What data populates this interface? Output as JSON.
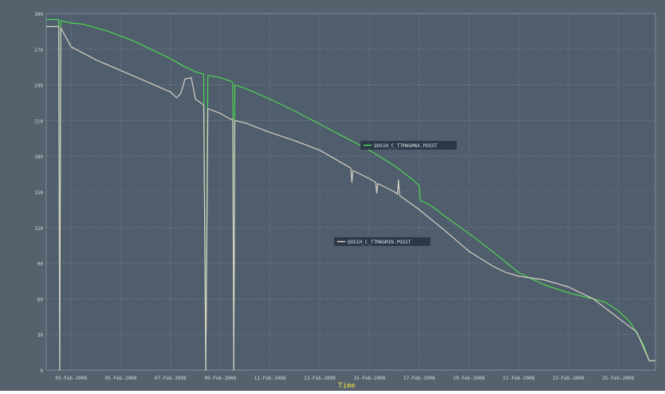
{
  "chart_data": {
    "type": "line",
    "xlabel": "Time",
    "ylabel": "",
    "ylim": [
      0,
      300
    ],
    "yticks": [
      0,
      30,
      60,
      90,
      120,
      150,
      180,
      210,
      240,
      270,
      300
    ],
    "xlim": [
      "2008-02-02T00:00",
      "2008-02-26T12:00"
    ],
    "xticks": [
      {
        "date": "2008-02-03",
        "label": "03-Feb-2008"
      },
      {
        "date": "2008-02-05",
        "label": "05-Feb-2008"
      },
      {
        "date": "2008-02-07",
        "label": "07-Feb-2008"
      },
      {
        "date": "2008-02-09",
        "label": "09-Feb-2008"
      },
      {
        "date": "2008-02-11",
        "label": "11-Feb-2008"
      },
      {
        "date": "2008-02-13",
        "label": "13-Feb-2008"
      },
      {
        "date": "2008-02-15",
        "label": "15-Feb-2008"
      },
      {
        "date": "2008-02-17",
        "label": "17-Feb-2008"
      },
      {
        "date": "2008-02-19",
        "label": "19-Feb-2008"
      },
      {
        "date": "2008-02-21",
        "label": "21-Feb-2008"
      },
      {
        "date": "2008-02-23",
        "label": "23-Feb-2008"
      },
      {
        "date": "2008-02-25",
        "label": "25-Feb-2008"
      }
    ],
    "grid": true,
    "colors": {
      "background": "#4f5d6d",
      "grid": "#7a8594",
      "tick_text": "#d4d8de",
      "xlabel": "#f0e040"
    },
    "series": [
      {
        "name": "QUS1H_C_TTMAGMAX.POSST",
        "color": "#4fd64f",
        "points": [
          [
            "2008-02-02T00:00",
            295
          ],
          [
            "2008-02-02T12:00",
            295
          ],
          [
            "2008-02-02T13:00",
            0
          ],
          [
            "2008-02-02T14:00",
            294
          ],
          [
            "2008-02-03T00:00",
            292
          ],
          [
            "2008-02-03T12:00",
            291
          ],
          [
            "2008-02-04T00:00",
            288
          ],
          [
            "2008-02-04T12:00",
            285
          ],
          [
            "2008-02-05T00:00",
            281
          ],
          [
            "2008-02-05T12:00",
            277
          ],
          [
            "2008-02-06T00:00",
            272
          ],
          [
            "2008-02-06T12:00",
            267
          ],
          [
            "2008-02-07T00:00",
            262
          ],
          [
            "2008-02-07T12:00",
            256
          ],
          [
            "2008-02-08T00:00",
            251
          ],
          [
            "2008-02-08T08:00",
            249
          ],
          [
            "2008-02-08T10:00",
            0
          ],
          [
            "2008-02-08T12:00",
            248
          ],
          [
            "2008-02-09T00:00",
            246
          ],
          [
            "2008-02-09T10:00",
            243
          ],
          [
            "2008-02-09T12:00",
            242
          ],
          [
            "2008-02-09T13:00",
            0
          ],
          [
            "2008-02-09T14:00",
            240
          ],
          [
            "2008-02-10T00:00",
            237
          ],
          [
            "2008-02-11T00:00",
            228
          ],
          [
            "2008-02-12T00:00",
            218
          ],
          [
            "2008-02-13T00:00",
            207
          ],
          [
            "2008-02-14T00:00",
            196
          ],
          [
            "2008-02-15T00:00",
            185
          ],
          [
            "2008-02-16T00:00",
            172
          ],
          [
            "2008-02-16T18:00",
            160
          ],
          [
            "2008-02-17T00:00",
            155
          ],
          [
            "2008-02-17T01:00",
            143
          ],
          [
            "2008-02-17T12:00",
            138
          ],
          [
            "2008-02-18T00:00",
            130
          ],
          [
            "2008-02-19T00:00",
            115
          ],
          [
            "2008-02-20T00:00",
            99
          ],
          [
            "2008-02-21T00:00",
            82
          ],
          [
            "2008-02-22T00:00",
            72
          ],
          [
            "2008-02-23T00:00",
            65
          ],
          [
            "2008-02-24T00:00",
            60
          ],
          [
            "2008-02-24T12:00",
            57
          ],
          [
            "2008-02-25T00:00",
            50
          ],
          [
            "2008-02-25T12:00",
            40
          ],
          [
            "2008-02-26T00:00",
            22
          ],
          [
            "2008-02-26T06:00",
            8
          ],
          [
            "2008-02-26T12:00",
            8
          ]
        ]
      },
      {
        "name": "QUS1H_C_TTMAGMIN.POSST",
        "color": "#d8d0c4",
        "points": [
          [
            "2008-02-02T00:00",
            289
          ],
          [
            "2008-02-02T12:00",
            289
          ],
          [
            "2008-02-02T13:00",
            0
          ],
          [
            "2008-02-02T14:00",
            288
          ],
          [
            "2008-02-03T00:00",
            272
          ],
          [
            "2008-02-04T00:00",
            261
          ],
          [
            "2008-02-05T00:00",
            252
          ],
          [
            "2008-02-06T00:00",
            243
          ],
          [
            "2008-02-07T00:00",
            234
          ],
          [
            "2008-02-07T06:00",
            229
          ],
          [
            "2008-02-07T10:00",
            233
          ],
          [
            "2008-02-07T14:00",
            245
          ],
          [
            "2008-02-07T20:00",
            246
          ],
          [
            "2008-02-08T00:00",
            228
          ],
          [
            "2008-02-08T08:00",
            223
          ],
          [
            "2008-02-08T10:00",
            0
          ],
          [
            "2008-02-08T12:00",
            220
          ],
          [
            "2008-02-09T00:00",
            216
          ],
          [
            "2008-02-09T10:00",
            211
          ],
          [
            "2008-02-09T12:00",
            211
          ],
          [
            "2008-02-09T13:00",
            0
          ],
          [
            "2008-02-09T14:00",
            210
          ],
          [
            "2008-02-10T00:00",
            208
          ],
          [
            "2008-02-11T00:00",
            200
          ],
          [
            "2008-02-12T00:00",
            193
          ],
          [
            "2008-02-13T00:00",
            185
          ],
          [
            "2008-02-14T00:00",
            173
          ],
          [
            "2008-02-14T06:00",
            170
          ],
          [
            "2008-02-14T07:00",
            158
          ],
          [
            "2008-02-14T08:00",
            168
          ],
          [
            "2008-02-15T00:00",
            161
          ],
          [
            "2008-02-15T06:00",
            158
          ],
          [
            "2008-02-15T07:00",
            149
          ],
          [
            "2008-02-15T08:00",
            157
          ],
          [
            "2008-02-16T00:00",
            150
          ],
          [
            "2008-02-16T03:00",
            148
          ],
          [
            "2008-02-16T04:00",
            160
          ],
          [
            "2008-02-16T05:00",
            147
          ],
          [
            "2008-02-17T00:00",
            135
          ],
          [
            "2008-02-18T00:00",
            118
          ],
          [
            "2008-02-19T00:00",
            100
          ],
          [
            "2008-02-20T00:00",
            87
          ],
          [
            "2008-02-20T12:00",
            82
          ],
          [
            "2008-02-21T00:00",
            79
          ],
          [
            "2008-02-22T00:00",
            76
          ],
          [
            "2008-02-23T00:00",
            70
          ],
          [
            "2008-02-24T00:00",
            60
          ],
          [
            "2008-02-25T00:00",
            44
          ],
          [
            "2008-02-25T18:00",
            32
          ],
          [
            "2008-02-26T06:00",
            8
          ],
          [
            "2008-02-26T12:00",
            8
          ]
        ]
      }
    ],
    "legends": [
      {
        "series": 0,
        "text": "QUS1H_C_TTMAGMAX.POSST"
      },
      {
        "series": 1,
        "text": "QUS1H_C_TTMAGMIN.POSST"
      }
    ]
  }
}
